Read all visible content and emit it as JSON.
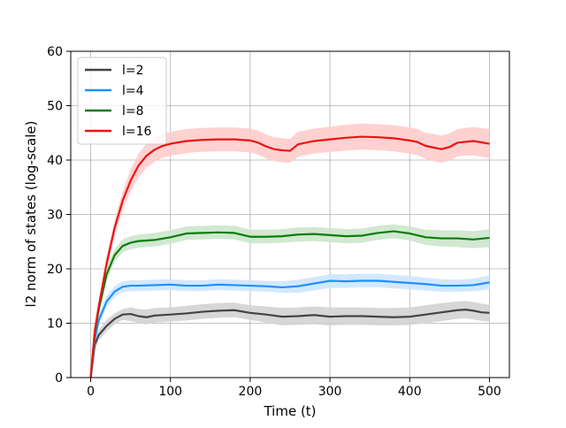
{
  "chart_data": {
    "type": "line",
    "title": "",
    "xlabel": "Time (t)",
    "ylabel": "l2 norm of states (log-scale)",
    "xlim": [
      -25,
      525
    ],
    "ylim": [
      0,
      60
    ],
    "xticks": [
      0,
      100,
      200,
      300,
      400,
      500
    ],
    "yticks": [
      0,
      10,
      20,
      30,
      40,
      50,
      60
    ],
    "grid": true,
    "legend_position": "upper-left",
    "series": [
      {
        "name": "l=2",
        "color": "#444444",
        "band_color": "#d3d3d3",
        "x": [
          0,
          5,
          10,
          20,
          30,
          40,
          50,
          60,
          70,
          80,
          100,
          120,
          140,
          160,
          180,
          200,
          220,
          240,
          260,
          280,
          300,
          320,
          340,
          360,
          380,
          400,
          420,
          440,
          460,
          470,
          480,
          490,
          500
        ],
        "y": [
          0,
          6,
          7.8,
          9.5,
          10.8,
          11.6,
          11.7,
          11.3,
          11.1,
          11.4,
          11.6,
          11.8,
          12.1,
          12.3,
          12.4,
          11.9,
          11.6,
          11.2,
          11.3,
          11.5,
          11.2,
          11.3,
          11.3,
          11.2,
          11.1,
          11.2,
          11.6,
          12.0,
          12.4,
          12.5,
          12.3,
          12.0,
          11.9
        ],
        "lower": [
          0,
          5,
          6.8,
          8.5,
          9.8,
          10.6,
          10.4,
          10.0,
          9.8,
          10.1,
          10.3,
          10.5,
          10.8,
          11.0,
          11.1,
          10.6,
          10.1,
          9.6,
          9.7,
          9.8,
          9.6,
          9.7,
          9.7,
          9.6,
          9.6,
          9.7,
          10.0,
          10.4,
          10.8,
          10.9,
          10.7,
          10.4,
          10.3
        ],
        "upper": [
          0,
          7,
          8.8,
          10.6,
          11.8,
          12.6,
          12.9,
          12.6,
          12.5,
          12.8,
          12.9,
          13.2,
          13.5,
          13.7,
          13.8,
          13.3,
          13.1,
          12.8,
          12.9,
          13.1,
          12.9,
          12.9,
          12.9,
          12.8,
          12.8,
          12.9,
          13.3,
          13.7,
          14.0,
          14.1,
          13.9,
          13.6,
          13.4
        ]
      },
      {
        "name": "l=4",
        "color": "#1e90ff",
        "band_color": "#cde6ff",
        "x": [
          0,
          5,
          10,
          20,
          30,
          40,
          50,
          60,
          80,
          100,
          120,
          140,
          160,
          180,
          200,
          220,
          240,
          260,
          280,
          300,
          320,
          340,
          360,
          380,
          400,
          420,
          440,
          460,
          480,
          500
        ],
        "y": [
          0,
          7,
          10.5,
          14,
          15.8,
          16.7,
          16.9,
          16.9,
          17.0,
          17.1,
          16.9,
          16.9,
          17.1,
          17.0,
          16.9,
          16.8,
          16.6,
          16.8,
          17.3,
          17.8,
          17.7,
          17.8,
          17.8,
          17.6,
          17.4,
          17.2,
          16.9,
          16.9,
          17.0,
          17.5
        ],
        "lower": [
          0,
          6,
          9.5,
          13,
          14.8,
          15.7,
          15.9,
          15.9,
          16.0,
          16.1,
          15.9,
          15.9,
          16.1,
          16.0,
          15.9,
          15.8,
          15.6,
          15.6,
          16.0,
          16.5,
          16.5,
          16.6,
          16.6,
          16.4,
          16.2,
          16.0,
          15.8,
          15.8,
          15.9,
          16.2
        ],
        "upper": [
          0,
          8,
          11.5,
          15,
          16.8,
          17.7,
          17.9,
          17.9,
          18.0,
          18.1,
          17.9,
          17.9,
          18.1,
          18.0,
          17.9,
          17.8,
          17.7,
          18.0,
          18.5,
          19.0,
          19.0,
          19.1,
          19.1,
          18.9,
          18.7,
          18.4,
          18.1,
          18.0,
          18.2,
          18.8
        ]
      },
      {
        "name": "l=8",
        "color": "#0a7d0a",
        "band_color": "#cce5cc",
        "x": [
          0,
          5,
          10,
          20,
          30,
          40,
          50,
          60,
          80,
          100,
          120,
          140,
          160,
          180,
          200,
          220,
          240,
          260,
          280,
          300,
          320,
          340,
          360,
          380,
          400,
          420,
          440,
          460,
          480,
          500
        ],
        "y": [
          0,
          8,
          12.5,
          19,
          22.5,
          24.2,
          24.8,
          25.1,
          25.3,
          25.8,
          26.5,
          26.6,
          26.7,
          26.6,
          25.9,
          25.9,
          26.0,
          26.3,
          26.4,
          26.2,
          26.0,
          26.1,
          26.6,
          26.9,
          26.5,
          25.8,
          25.6,
          25.6,
          25.4,
          25.7
        ],
        "lower": [
          0,
          7,
          11.5,
          17.8,
          21.3,
          23.0,
          23.6,
          23.9,
          24.1,
          24.6,
          25.3,
          25.4,
          25.5,
          25.4,
          24.7,
          24.7,
          24.8,
          25.0,
          25.1,
          24.9,
          24.7,
          24.8,
          25.3,
          25.6,
          25.2,
          24.4,
          24.1,
          24.0,
          23.8,
          24.0
        ],
        "upper": [
          0,
          9,
          13.5,
          20.2,
          23.7,
          25.4,
          26.0,
          26.3,
          26.6,
          27.1,
          27.8,
          27.9,
          28.0,
          27.9,
          27.2,
          27.2,
          27.3,
          27.6,
          27.7,
          27.5,
          27.3,
          27.4,
          27.9,
          28.2,
          27.8,
          27.2,
          27.1,
          27.1,
          26.9,
          27.3
        ]
      },
      {
        "name": "l=16",
        "color": "#ee1111",
        "band_color": "#ffcccc",
        "x": [
          0,
          5,
          10,
          20,
          30,
          40,
          50,
          60,
          70,
          80,
          90,
          100,
          120,
          140,
          160,
          180,
          200,
          210,
          220,
          230,
          240,
          250,
          260,
          280,
          300,
          320,
          340,
          360,
          380,
          400,
          410,
          420,
          430,
          440,
          450,
          460,
          480,
          500
        ],
        "y": [
          0,
          8.5,
          13,
          21,
          27.5,
          32.5,
          36.2,
          39,
          40.8,
          41.9,
          42.6,
          43.0,
          43.5,
          43.7,
          43.8,
          43.8,
          43.6,
          43.2,
          42.5,
          42.0,
          41.8,
          41.7,
          42.9,
          43.5,
          43.8,
          44.1,
          44.3,
          44.2,
          44.0,
          43.6,
          43.3,
          42.6,
          42.3,
          42.0,
          42.4,
          43.2,
          43.5,
          43.0
        ],
        "lower": [
          0,
          7.5,
          12,
          19.5,
          26,
          30.8,
          34.2,
          36.8,
          38.6,
          39.7,
          40.4,
          40.8,
          41.3,
          41.5,
          41.6,
          41.6,
          41.4,
          41.0,
          40.3,
          39.8,
          39.6,
          39.5,
          40.6,
          41.2,
          41.5,
          41.7,
          41.9,
          41.8,
          41.6,
          41.2,
          40.9,
          40.2,
          39.8,
          39.5,
          39.9,
          40.7,
          40.9,
          40.3
        ],
        "upper": [
          0,
          9.5,
          14,
          22.5,
          29,
          34.2,
          38.2,
          41.2,
          43.0,
          44.1,
          44.8,
          45.2,
          45.7,
          45.9,
          46.0,
          46.0,
          45.8,
          45.4,
          44.7,
          44.2,
          44.0,
          43.9,
          45.2,
          45.8,
          46.1,
          46.5,
          46.7,
          46.6,
          46.4,
          46.0,
          45.7,
          45.0,
          44.8,
          44.5,
          44.9,
          45.7,
          46.1,
          45.7
        ]
      }
    ]
  }
}
